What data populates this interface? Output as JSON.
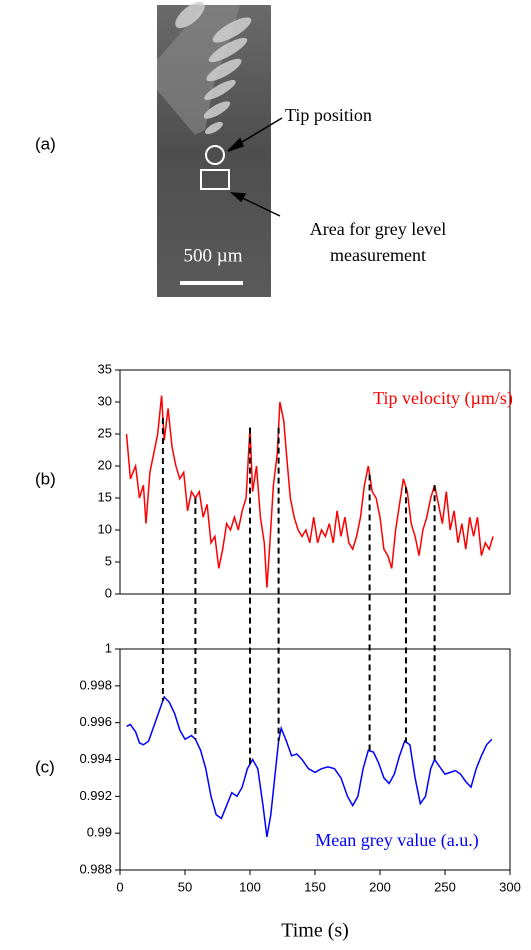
{
  "panel_a": {
    "label": "(a)",
    "tip_label": "Tip position",
    "area_label_lines": [
      "Area for grey level",
      "measurement"
    ],
    "scale_bar": "500 µm"
  },
  "peak_times": [
    33,
    58,
    100,
    122,
    192,
    220,
    242
  ],
  "chart_data": [
    {
      "type": "line",
      "panel_label": "(b)",
      "xlim": [
        0,
        300
      ],
      "ylim": [
        0,
        35
      ],
      "yticks": [
        0,
        5,
        10,
        15,
        20,
        25,
        30,
        35
      ],
      "x": [
        5,
        8,
        12,
        15,
        18,
        20,
        23,
        26,
        29,
        32,
        34,
        37,
        40,
        43,
        46,
        49,
        52,
        55,
        58,
        61,
        64,
        67,
        70,
        73,
        76,
        79,
        82,
        85,
        88,
        91,
        94,
        97,
        100,
        102,
        105,
        108,
        111,
        113,
        115,
        118,
        121,
        123,
        126,
        128,
        131,
        134,
        137,
        140,
        143,
        146,
        149,
        152,
        155,
        158,
        161,
        164,
        167,
        170,
        173,
        176,
        179,
        182,
        185,
        188,
        191,
        194,
        197,
        200,
        203,
        206,
        209,
        212,
        215,
        218,
        221,
        224,
        227,
        230,
        233,
        236,
        239,
        242,
        245,
        248,
        251,
        254,
        257,
        260,
        263,
        266,
        269,
        272,
        275,
        278,
        281,
        284,
        287
      ],
      "series": [
        {
          "name": "Tip velocity (µm/s)",
          "color": "#ff0000",
          "values": [
            25,
            18,
            20,
            15,
            17,
            11,
            19,
            22,
            25,
            31,
            24,
            29,
            23,
            20,
            18,
            19,
            13,
            16,
            15,
            16,
            12,
            14,
            8,
            9,
            4,
            7,
            11,
            10,
            12,
            10,
            13,
            15,
            26,
            16,
            20,
            12,
            8,
            1,
            7,
            17,
            22,
            30,
            27,
            22,
            15,
            12,
            10,
            9,
            10,
            8,
            12,
            8,
            10,
            9,
            11,
            8,
            13,
            9,
            12,
            8,
            7,
            9,
            12,
            17,
            20,
            16,
            15,
            12,
            7,
            6,
            4,
            10,
            14,
            18,
            16,
            11,
            9,
            6,
            10,
            12,
            15,
            17,
            14,
            11,
            16,
            10,
            13,
            8,
            11,
            7,
            12,
            9,
            12,
            6,
            8,
            7,
            9
          ]
        }
      ]
    },
    {
      "type": "line",
      "panel_label": "(c)",
      "xlabel": "Time (s)",
      "xlim": [
        0,
        300
      ],
      "xticks": [
        0,
        50,
        100,
        150,
        200,
        250,
        300
      ],
      "ylim": [
        0.988,
        1
      ],
      "yticks": [
        0.988,
        0.99,
        0.992,
        0.994,
        0.996,
        0.998,
        1
      ],
      "x": [
        5,
        8,
        12,
        15,
        18,
        22,
        26,
        30,
        34,
        38,
        42,
        46,
        50,
        55,
        58,
        62,
        66,
        70,
        74,
        78,
        82,
        86,
        90,
        94,
        98,
        102,
        106,
        110,
        113,
        116,
        119,
        122,
        124,
        128,
        132,
        136,
        140,
        145,
        150,
        155,
        160,
        165,
        170,
        175,
        179,
        183,
        187,
        191,
        195,
        199,
        203,
        207,
        211,
        215,
        219,
        223,
        227,
        231,
        235,
        239,
        242,
        246,
        250,
        254,
        258,
        262,
        266,
        270,
        274,
        278,
        282,
        286
      ],
      "series": [
        {
          "name": "Mean grey value (a.u.)",
          "color": "#0000ff",
          "values": [
            0.9958,
            0.9959,
            0.9955,
            0.9949,
            0.9948,
            0.995,
            0.9958,
            0.9966,
            0.9974,
            0.9971,
            0.9965,
            0.9956,
            0.9951,
            0.9953,
            0.9951,
            0.9945,
            0.9935,
            0.992,
            0.991,
            0.9908,
            0.9915,
            0.9922,
            0.992,
            0.9925,
            0.9935,
            0.994,
            0.9935,
            0.9915,
            0.9898,
            0.991,
            0.993,
            0.995,
            0.9957,
            0.995,
            0.9942,
            0.9943,
            0.994,
            0.9935,
            0.9933,
            0.9935,
            0.9936,
            0.9935,
            0.993,
            0.992,
            0.9915,
            0.992,
            0.9935,
            0.9945,
            0.9944,
            0.9938,
            0.993,
            0.9927,
            0.9932,
            0.9942,
            0.995,
            0.9948,
            0.993,
            0.9916,
            0.992,
            0.9935,
            0.994,
            0.9936,
            0.9932,
            0.9933,
            0.9934,
            0.9932,
            0.9928,
            0.9925,
            0.9935,
            0.9942,
            0.9948,
            0.9951
          ]
        }
      ]
    }
  ]
}
